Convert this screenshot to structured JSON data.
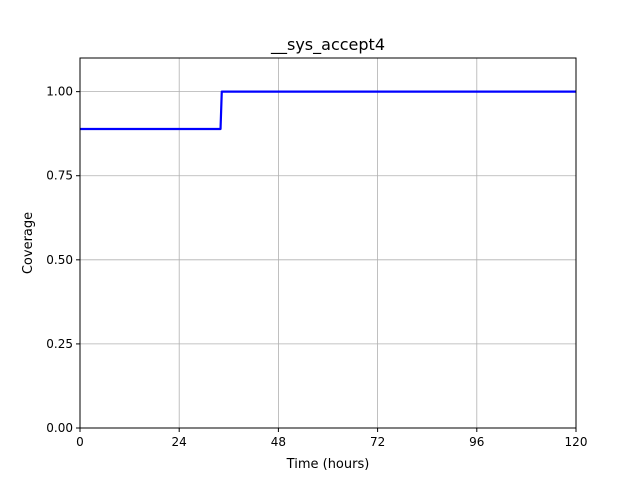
{
  "chart_data": {
    "type": "line",
    "title": "__sys_accept4",
    "xlabel": "Time (hours)",
    "ylabel": "Coverage",
    "xlim": [
      0,
      120
    ],
    "ylim": [
      0,
      1.1
    ],
    "xticks": [
      0,
      24,
      48,
      72,
      96,
      120
    ],
    "xtick_labels": [
      "0",
      "24",
      "48",
      "72",
      "96",
      "120"
    ],
    "yticks": [
      0,
      0.25,
      0.5,
      0.75,
      1.0
    ],
    "ytick_labels": [
      "0.00",
      "0.25",
      "0.50",
      "0.75",
      "1.00"
    ],
    "grid": true,
    "series": [
      {
        "color": "#0000ff",
        "x": [
          0,
          34,
          34.3,
          120
        ],
        "y": [
          0.889,
          0.889,
          1.0,
          1.0
        ]
      }
    ]
  }
}
